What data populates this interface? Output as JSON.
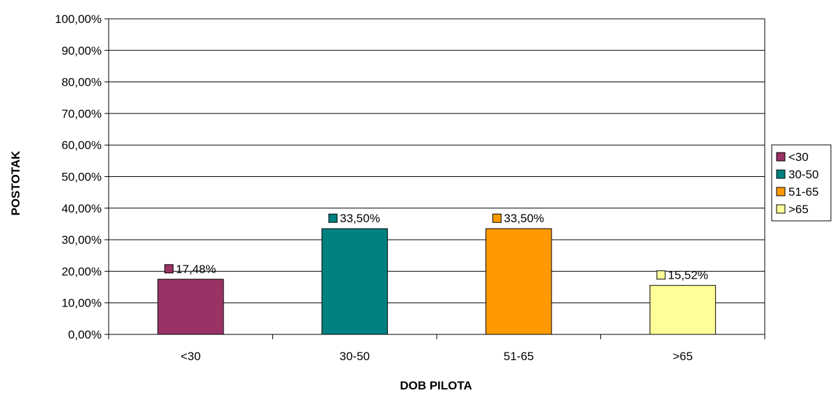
{
  "chart_data": {
    "type": "bar",
    "title": "",
    "xlabel": "DOB PILOTA",
    "ylabel": "POSTOTAK",
    "categories": [
      "<30",
      "30-50",
      "51-65",
      ">65"
    ],
    "values": [
      17.48,
      33.5,
      33.5,
      15.52
    ],
    "value_labels": [
      "17,48%",
      "33,50%",
      "33,50%",
      "15,52%"
    ],
    "colors": [
      "#993366",
      "#008080",
      "#FF9900",
      "#FFFF99"
    ],
    "ylim": [
      0,
      100
    ],
    "yticks": [
      0,
      10,
      20,
      30,
      40,
      50,
      60,
      70,
      80,
      90,
      100
    ],
    "ytick_labels": [
      "0,00%",
      "10,00%",
      "20,00%",
      "30,00%",
      "40,00%",
      "50,00%",
      "60,00%",
      "70,00%",
      "80,00%",
      "90,00%",
      "100,00%"
    ],
    "grid": true,
    "legend": {
      "position": "right",
      "entries": [
        "<30",
        "30-50",
        "51-65",
        ">65"
      ]
    }
  }
}
